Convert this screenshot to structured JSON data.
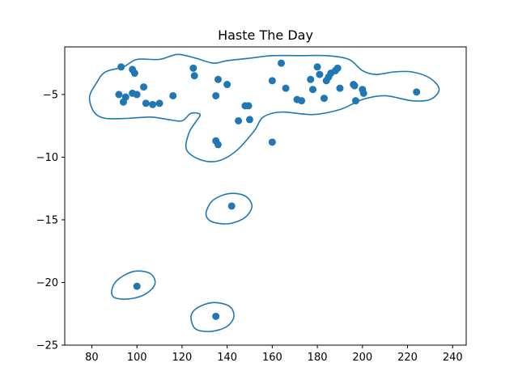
{
  "chart_data": {
    "type": "scatter",
    "title": "Haste The Day",
    "xlabel": "",
    "ylabel": "",
    "xlim": [
      68,
      246
    ],
    "ylim": [
      -25,
      -1.2
    ],
    "xticks": [
      80,
      100,
      120,
      140,
      160,
      180,
      200,
      220,
      240
    ],
    "yticks": [
      -5,
      -10,
      -15,
      -20,
      -25
    ],
    "xtick_labels": [
      "80",
      "100",
      "120",
      "140",
      "160",
      "180",
      "200",
      "220",
      "240"
    ],
    "ytick_labels": [
      "−5",
      "−10",
      "−15",
      "−20",
      "−25"
    ],
    "grid": false,
    "legend": "none",
    "color": "#1f77b4",
    "points": [
      {
        "x": 93.0,
        "y": -2.8
      },
      {
        "x": 98.0,
        "y": -3.0
      },
      {
        "x": 99.0,
        "y": -3.3
      },
      {
        "x": 92.0,
        "y": -5.0
      },
      {
        "x": 94.0,
        "y": -5.6
      },
      {
        "x": 95.0,
        "y": -5.2
      },
      {
        "x": 98.0,
        "y": -4.9
      },
      {
        "x": 100.0,
        "y": -5.0
      },
      {
        "x": 103.0,
        "y": -4.4
      },
      {
        "x": 104.0,
        "y": -5.7
      },
      {
        "x": 107.0,
        "y": -5.8
      },
      {
        "x": 110.0,
        "y": -5.7
      },
      {
        "x": 116.0,
        "y": -5.1
      },
      {
        "x": 125.0,
        "y": -2.9
      },
      {
        "x": 125.5,
        "y": -3.5
      },
      {
        "x": 135.0,
        "y": -5.1
      },
      {
        "x": 136.0,
        "y": -3.8
      },
      {
        "x": 140.0,
        "y": -4.2
      },
      {
        "x": 145.0,
        "y": -7.1
      },
      {
        "x": 148.0,
        "y": -5.9
      },
      {
        "x": 149.5,
        "y": -5.9
      },
      {
        "x": 150.0,
        "y": -7.0
      },
      {
        "x": 135.0,
        "y": -8.7
      },
      {
        "x": 136.0,
        "y": -9.0
      },
      {
        "x": 160.0,
        "y": -8.8
      },
      {
        "x": 160.0,
        "y": -3.9
      },
      {
        "x": 164.0,
        "y": -2.5
      },
      {
        "x": 166.0,
        "y": -4.5
      },
      {
        "x": 171.0,
        "y": -5.4
      },
      {
        "x": 173.0,
        "y": -5.5
      },
      {
        "x": 177.0,
        "y": -3.8
      },
      {
        "x": 178.0,
        "y": -4.6
      },
      {
        "x": 180.0,
        "y": -2.8
      },
      {
        "x": 181.0,
        "y": -3.4
      },
      {
        "x": 183.0,
        "y": -5.3
      },
      {
        "x": 184.0,
        "y": -3.9
      },
      {
        "x": 185.0,
        "y": -3.6
      },
      {
        "x": 186.0,
        "y": -3.3
      },
      {
        "x": 188.0,
        "y": -3.1
      },
      {
        "x": 189.0,
        "y": -2.9
      },
      {
        "x": 190.0,
        "y": -4.5
      },
      {
        "x": 196.0,
        "y": -4.2
      },
      {
        "x": 196.5,
        "y": -4.3
      },
      {
        "x": 197.0,
        "y": -5.5
      },
      {
        "x": 200.0,
        "y": -4.6
      },
      {
        "x": 200.5,
        "y": -4.9
      },
      {
        "x": 224.0,
        "y": -4.8
      },
      {
        "x": 142.0,
        "y": -13.9
      },
      {
        "x": 100.0,
        "y": -20.3
      },
      {
        "x": 135.0,
        "y": -22.7
      }
    ],
    "contours": [
      [
        [
          94,
          -2.8
        ],
        [
          100,
          -2.2
        ],
        [
          110,
          -2.2
        ],
        [
          118,
          -1.8
        ],
        [
          126,
          -2.1
        ],
        [
          134,
          -2.5
        ],
        [
          140,
          -2.3
        ],
        [
          150,
          -2.1
        ],
        [
          160,
          -1.9
        ],
        [
          172,
          -1.9
        ],
        [
          184,
          -1.9
        ],
        [
          194,
          -2.2
        ],
        [
          200,
          -3.1
        ],
        [
          206,
          -3.4
        ],
        [
          214,
          -3.2
        ],
        [
          222,
          -3.2
        ],
        [
          230,
          -3.7
        ],
        [
          234,
          -4.6
        ],
        [
          230,
          -5.4
        ],
        [
          222,
          -5.5
        ],
        [
          210,
          -5.1
        ],
        [
          200,
          -5.4
        ],
        [
          190,
          -6.2
        ],
        [
          178,
          -6.6
        ],
        [
          164,
          -6.4
        ],
        [
          156,
          -6.8
        ],
        [
          152,
          -7.9
        ],
        [
          144,
          -9.5
        ],
        [
          136,
          -10.3
        ],
        [
          128,
          -10.2
        ],
        [
          122,
          -9.4
        ],
        [
          123,
          -8.1
        ],
        [
          126,
          -7.2
        ],
        [
          128,
          -6.6
        ],
        [
          124,
          -6.5
        ],
        [
          120,
          -7.1
        ],
        [
          114,
          -7.0
        ],
        [
          106,
          -6.8
        ],
        [
          96,
          -6.9
        ],
        [
          86,
          -6.9
        ],
        [
          81,
          -6.4
        ],
        [
          79,
          -5.2
        ],
        [
          82,
          -4.1
        ],
        [
          86,
          -3.2
        ],
        [
          94,
          -2.8
        ]
      ],
      [
        [
          131,
          -14.2
        ],
        [
          134,
          -13.4
        ],
        [
          141,
          -12.9
        ],
        [
          148,
          -13.1
        ],
        [
          151,
          -13.9
        ],
        [
          148,
          -14.8
        ],
        [
          141,
          -15.3
        ],
        [
          134,
          -15.2
        ],
        [
          131,
          -14.8
        ],
        [
          131,
          -14.2
        ]
      ],
      [
        [
          89,
          -20.5
        ],
        [
          92,
          -19.7
        ],
        [
          99,
          -19.1
        ],
        [
          106,
          -19.3
        ],
        [
          108,
          -20.1
        ],
        [
          104,
          -20.9
        ],
        [
          97,
          -21.3
        ],
        [
          90,
          -21.2
        ],
        [
          89,
          -20.5
        ]
      ],
      [
        [
          124,
          -22.7
        ],
        [
          127,
          -22.0
        ],
        [
          134,
          -21.6
        ],
        [
          141,
          -21.9
        ],
        [
          143,
          -22.7
        ],
        [
          140,
          -23.5
        ],
        [
          133,
          -23.9
        ],
        [
          126,
          -23.7
        ],
        [
          124,
          -22.7
        ]
      ]
    ]
  }
}
